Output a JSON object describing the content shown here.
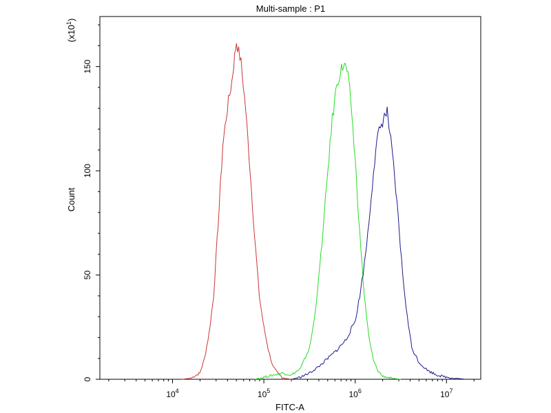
{
  "chart_data": {
    "type": "line",
    "title": "Multi-sample : P1",
    "xlabel": "FITC-A",
    "ylabel": "Count",
    "y_multiplier_label": {
      "prefix": "(x10",
      "exponent": "1",
      "suffix": ")"
    },
    "x_scale": "log",
    "xlim": [
      1258.9,
      16982.4
    ],
    "xlim_note": "",
    "ylim": [
      0,
      174
    ],
    "x_ticks": [
      {
        "value": 10000,
        "base": "10",
        "exp": "4"
      },
      {
        "value": 100000,
        "base": "10",
        "exp": "5"
      },
      {
        "value": 1000000,
        "base": "10",
        "exp": "6"
      },
      {
        "value": 10000000,
        "base": "10",
        "exp": "7"
      }
    ],
    "y_ticks": [
      {
        "value": 0,
        "label": "0"
      },
      {
        "value": 50,
        "label": "50"
      },
      {
        "value": 100,
        "label": "100"
      },
      {
        "value": 150,
        "label": "150"
      }
    ],
    "grid": false,
    "legend": "none",
    "series": [
      {
        "color": "#cc3333",
        "points": [
          [
            12589,
            0
          ],
          [
            15849,
            0.5
          ],
          [
            19953,
            3
          ],
          [
            22387,
            10
          ],
          [
            25119,
            22
          ],
          [
            28184,
            40
          ],
          [
            31623,
            75
          ],
          [
            35481,
            112
          ],
          [
            39811,
            130
          ],
          [
            44668,
            143
          ],
          [
            47863,
            155
          ],
          [
            50119,
            162
          ],
          [
            53088,
            157
          ],
          [
            56234,
            152
          ],
          [
            63096,
            130
          ],
          [
            70795,
            100
          ],
          [
            79433,
            68
          ],
          [
            89125,
            40
          ],
          [
            100000,
            25
          ],
          [
            112202,
            14
          ],
          [
            125893,
            6
          ],
          [
            141254,
            3
          ],
          [
            158489,
            1
          ],
          [
            177828,
            0.3
          ],
          [
            199526,
            0
          ]
        ]
      },
      {
        "color": "#22dd22",
        "points": [
          [
            79433,
            0
          ],
          [
            100000,
            1
          ],
          [
            125893,
            2
          ],
          [
            158489,
            3
          ],
          [
            199526,
            2
          ],
          [
            251189,
            5
          ],
          [
            316228,
            15
          ],
          [
            354813,
            28
          ],
          [
            398107,
            48
          ],
          [
            446684,
            72
          ],
          [
            501187,
            100
          ],
          [
            562341,
            125
          ],
          [
            630957,
            142
          ],
          [
            707946,
            149
          ],
          [
            758578,
            151
          ],
          [
            812831,
            148
          ],
          [
            891251,
            135
          ],
          [
            1000000,
            105
          ],
          [
            1122018,
            70
          ],
          [
            1258925,
            40
          ],
          [
            1412538,
            20
          ],
          [
            1584893,
            9
          ],
          [
            1778279,
            4
          ],
          [
            1995262,
            1.5
          ],
          [
            2511886,
            0.5
          ],
          [
            3162278,
            0
          ]
        ]
      },
      {
        "color": "#1a1a8c",
        "points": [
          [
            199526,
            0
          ],
          [
            251189,
            1
          ],
          [
            316228,
            3
          ],
          [
            398107,
            6
          ],
          [
            501187,
            10
          ],
          [
            630957,
            14
          ],
          [
            794328,
            19
          ],
          [
            1000000,
            28
          ],
          [
            1122018,
            40
          ],
          [
            1258925,
            55
          ],
          [
            1412538,
            75
          ],
          [
            1584893,
            100
          ],
          [
            1778279,
            117
          ],
          [
            1995262,
            124
          ],
          [
            2137962,
            127
          ],
          [
            2238721,
            128
          ],
          [
            2398833,
            118
          ],
          [
            2630268,
            102
          ],
          [
            2951209,
            78
          ],
          [
            3311311,
            50
          ],
          [
            3715352,
            30
          ],
          [
            4168694,
            15
          ],
          [
            5011872,
            8
          ],
          [
            6309573,
            4
          ],
          [
            7943282,
            2
          ],
          [
            10000000,
            1
          ],
          [
            12589254,
            0.5
          ],
          [
            16218101,
            0
          ]
        ]
      }
    ]
  }
}
